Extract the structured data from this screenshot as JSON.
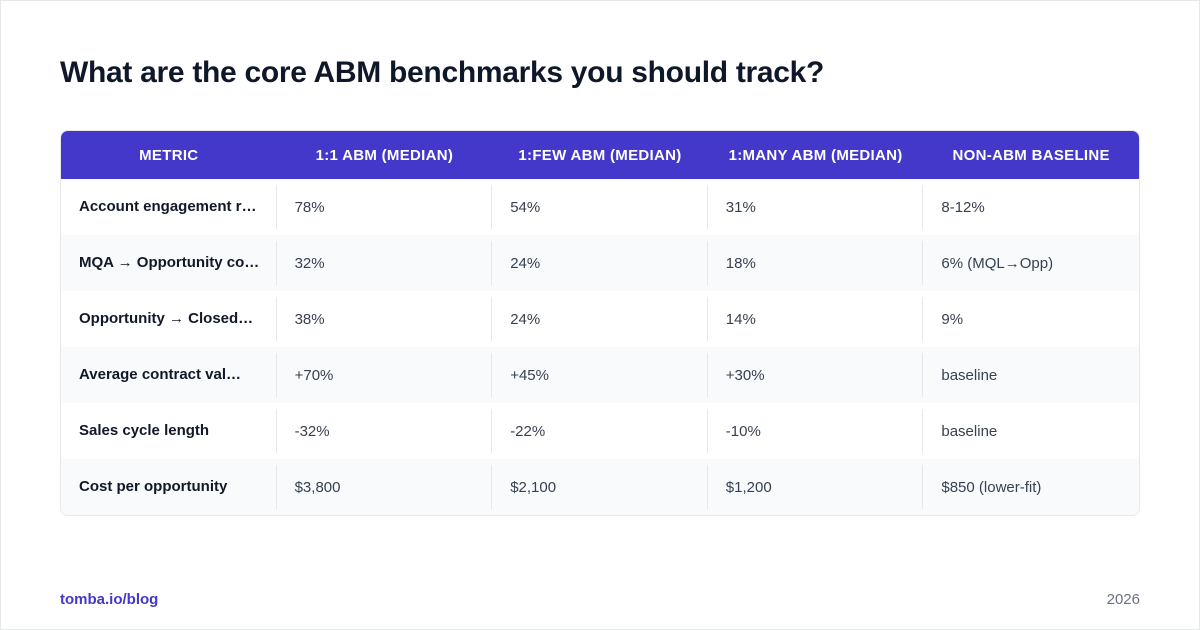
{
  "title": "What are the core ABM benchmarks you should track?",
  "table": {
    "headers": [
      "METRIC",
      "1:1 ABM (MEDIAN)",
      "1:FEW ABM (MEDIAN)",
      "1:MANY ABM (MEDIAN)",
      "NON-ABM BASELINE"
    ],
    "rows": [
      [
        "Account engagement r…",
        "78%",
        "54%",
        "31%",
        "8-12%"
      ],
      [
        "MQA → Opportunity co…",
        "32%",
        "24%",
        "18%",
        "6% (MQL→Opp)"
      ],
      [
        "Opportunity → Closed…",
        "38%",
        "24%",
        "14%",
        "9%"
      ],
      [
        "Average contract val…",
        "+70%",
        "+45%",
        "+30%",
        "baseline"
      ],
      [
        "Sales cycle length",
        "-32%",
        "-22%",
        "-10%",
        "baseline"
      ],
      [
        "Cost per opportunity",
        "$3,800",
        "$2,100",
        "$1,200",
        "$850 (lower-fit)"
      ]
    ]
  },
  "footer": {
    "source": "tomba.io/blog",
    "year": "2026"
  }
}
